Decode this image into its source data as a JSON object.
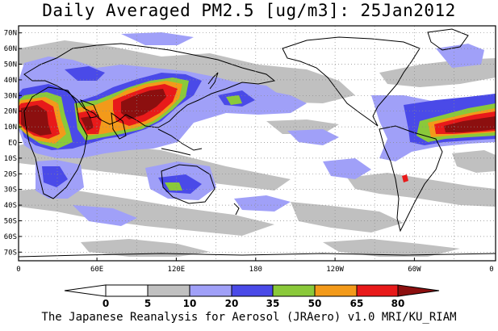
{
  "title": "Daily Averaged PM2.5 [ug/m3]: 25Jan2012",
  "footer": "The Japanese Reanalysis for Aerosol (JRAero) v1.0 MRI/KU_RIAM",
  "map": {
    "lat_labels": [
      "70N",
      "60N",
      "50N",
      "40N",
      "30N",
      "20N",
      "10N",
      "EQ",
      "10S",
      "20S",
      "30S",
      "40S",
      "50S",
      "60S",
      "70S"
    ],
    "lon_labels": [
      "0",
      "60E",
      "120E",
      "180",
      "120W",
      "60W",
      "0"
    ],
    "grid": "dotted",
    "projection": "cylindrical equidistant"
  },
  "colorbar": {
    "ticks": [
      "0",
      "5",
      "10",
      "20",
      "35",
      "50",
      "65",
      "80"
    ],
    "bins": [
      {
        "range": "<0",
        "color": "#ffffff"
      },
      {
        "range": "0-5",
        "color": "#ffffff"
      },
      {
        "range": "5-10",
        "color": "#c0c0c0"
      },
      {
        "range": "10-20",
        "color": "#a0a0f8"
      },
      {
        "range": "20-35",
        "color": "#4a4ae8"
      },
      {
        "range": "35-50",
        "color": "#8ac93a"
      },
      {
        "range": "50-65",
        "color": "#f39a1a"
      },
      {
        "range": "65-80",
        "color": "#e81a1a"
      },
      {
        "range": ">80",
        "color": "#8c0f0f"
      }
    ]
  },
  "colors": {
    "grey": "#c0c0c0",
    "lightblue": "#a0a0f8",
    "blue": "#4a4ae8",
    "green": "#8ac93a",
    "orange": "#f39a1a",
    "red": "#e81a1a",
    "darkred": "#8c0f0f"
  }
}
